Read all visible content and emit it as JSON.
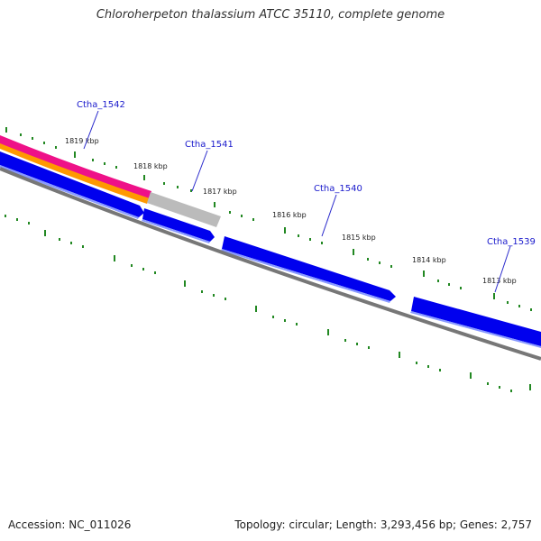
{
  "title": "Chloroherpeton thalassium ATCC 35110, complete genome",
  "footer": {
    "accession": "Accession: NC_011026",
    "summary": "Topology: circular; Length: 3,293,456 bp; Genes: 2,757"
  },
  "kbp_labels": [
    "1819 kbp",
    "1818 kbp",
    "1817 kbp",
    "1816 kbp",
    "1815 kbp",
    "1814 kbp",
    "1813 kbp"
  ],
  "genes": [
    "Ctha_1542",
    "Ctha_1541",
    "Ctha_1540",
    "Ctha_1539"
  ],
  "colors": {
    "gene": "#0000ee",
    "pseudogene": "#bbbbbb",
    "magenta_band": "#ee1188",
    "orange_band": "#ff9900",
    "tick": "#228822",
    "backbone": "#777777",
    "label": "#1a1acc"
  }
}
